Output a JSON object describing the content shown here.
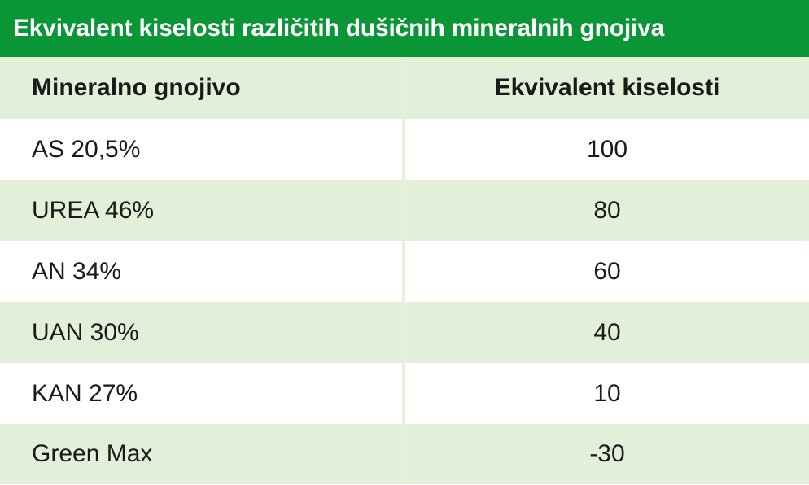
{
  "title": "Ekvivalent kiselosti različitih dušičnih mineralnih gnojiva",
  "colors": {
    "title_background": "#0a9637",
    "title_text": "#ffffff",
    "row_stripe": "#e2efd9",
    "row_plain": "#ffffff"
  },
  "table": {
    "headers": [
      "Mineralno gnojivo",
      "Ekvivalent kiselosti"
    ],
    "rows": [
      [
        "AS 20,5%",
        "100"
      ],
      [
        "UREA 46%",
        "80"
      ],
      [
        "AN 34%",
        "60"
      ],
      [
        "UAN 30%",
        "40"
      ],
      [
        "KAN 27%",
        "10"
      ],
      [
        "Green Max",
        "-30"
      ]
    ]
  }
}
